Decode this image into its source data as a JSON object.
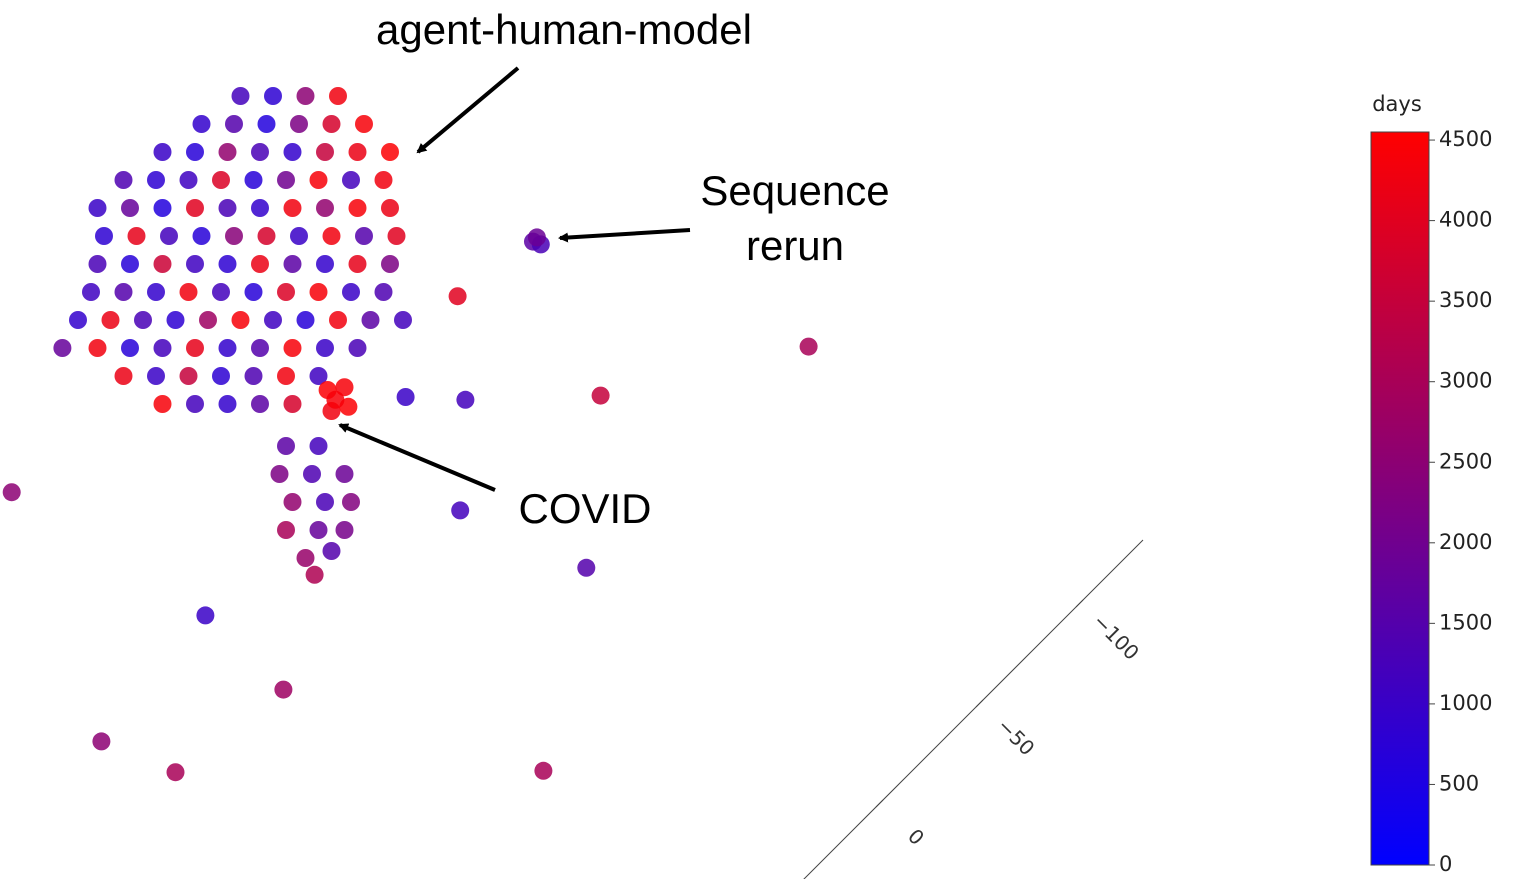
{
  "chart_data": {
    "type": "scatter3d",
    "annotations": [
      {
        "lines": [
          "agent-human-model"
        ]
      },
      {
        "lines": [
          "Sequence",
          "rerun"
        ]
      },
      {
        "lines": [
          "COVID"
        ]
      }
    ],
    "xlim": [
      0,
      100
    ],
    "ylim": [
      0,
      60
    ],
    "x": [
      18.5,
      21,
      23.5,
      26,
      15.5,
      18,
      20.5,
      23,
      25.5,
      28,
      12.5,
      15,
      17.5,
      20,
      22.5,
      25,
      27.5,
      30,
      9.5,
      12,
      14.5,
      17,
      19.5,
      22,
      24.5,
      27,
      29.5,
      7.5,
      10,
      12.5,
      15,
      17.5,
      20,
      22.5,
      25,
      27.5,
      30,
      8,
      10.5,
      13,
      15.5,
      18,
      20.5,
      23,
      25.5,
      28,
      30.5,
      7.5,
      10,
      12.5,
      15,
      17.5,
      20,
      22.5,
      25,
      27.5,
      30,
      7,
      9.5,
      12,
      14.5,
      17,
      19.5,
      22,
      24.5,
      27,
      29.5,
      6,
      8.5,
      11,
      13.5,
      16,
      18.5,
      21,
      23.5,
      26,
      28.5,
      31,
      4.8,
      7.5,
      10,
      12.5,
      15,
      17.5,
      20,
      22.5,
      25,
      27.5,
      9.5,
      12,
      14.5,
      17,
      19.5,
      22,
      24.5,
      12.5,
      15,
      17.5,
      20,
      22.5,
      22,
      24.5,
      21.5,
      24,
      26.5,
      22.5,
      25,
      27,
      22,
      24.5,
      26.5,
      23.5,
      25.5,
      24.2,
      25.2,
      26.5,
      25.5,
      26.8,
      25.8,
      41,
      41.6,
      41.3,
      62.2,
      46.2,
      35.8,
      31.2,
      35.4,
      45.1,
      15.8,
      21.8,
      7.8,
      13.5,
      41.8,
      0.9,
      35.2
    ],
    "y": [
      56,
      56,
      56,
      56,
      54,
      54,
      54,
      54,
      54,
      54,
      52,
      52,
      52,
      52,
      52,
      52,
      52,
      52,
      50,
      50,
      50,
      50,
      50,
      50,
      50,
      50,
      50,
      48,
      48,
      48,
      48,
      48,
      48,
      48,
      48,
      48,
      48,
      46,
      46,
      46,
      46,
      46,
      46,
      46,
      46,
      46,
      46,
      44,
      44,
      44,
      44,
      44,
      44,
      44,
      44,
      44,
      44,
      42,
      42,
      42,
      42,
      42,
      42,
      42,
      42,
      42,
      42,
      40,
      40,
      40,
      40,
      40,
      40,
      40,
      40,
      40,
      40,
      40,
      38,
      38,
      38,
      38,
      38,
      38,
      38,
      38,
      38,
      38,
      36,
      36,
      36,
      36,
      36,
      36,
      36,
      34,
      34,
      34,
      34,
      34,
      31,
      31,
      29,
      29,
      29,
      27,
      27,
      27,
      25,
      25,
      25,
      23,
      23.5,
      21.8,
      35,
      35.2,
      33.5,
      33.8,
      34.3,
      45.6,
      45.4,
      45.9,
      38.1,
      34.6,
      34.3,
      34.5,
      26.4,
      22.3,
      18.9,
      13.6,
      9.9,
      7.7,
      7.8,
      27.7,
      41.7
    ],
    "values": [
      1200,
      800,
      2500,
      4300,
      900,
      1500,
      600,
      2200,
      3800,
      4400,
      1000,
      700,
      2600,
      1300,
      900,
      3500,
      4200,
      4500,
      1400,
      800,
      1100,
      3900,
      700,
      2000,
      4400,
      1200,
      4300,
      1000,
      1800,
      600,
      4000,
      1300,
      900,
      4300,
      2600,
      4400,
      4200,
      800,
      4100,
      1200,
      700,
      2400,
      3800,
      1000,
      4300,
      1500,
      4000,
      1300,
      700,
      3600,
      1100,
      800,
      4200,
      1600,
      900,
      4100,
      2200,
      1100,
      1500,
      900,
      4300,
      1200,
      700,
      3900,
      4400,
      1000,
      1400,
      900,
      4200,
      1300,
      800,
      2800,
      4400,
      1100,
      700,
      4300,
      1600,
      1200,
      1800,
      4300,
      700,
      1200,
      4100,
      900,
      1500,
      4400,
      1000,
      1300,
      4200,
      1000,
      3500,
      800,
      1400,
      4300,
      1100,
      4400,
      1200,
      900,
      1600,
      3800,
      1600,
      1200,
      2200,
      1400,
      1900,
      2600,
      1300,
      2300,
      3000,
      1800,
      2100,
      2700,
      1500,
      3100,
      4500,
      4400,
      4300,
      4500,
      4400,
      1600,
      1300,
      1900,
      3000,
      3500,
      1200,
      1000,
      1200,
      1500,
      1000,
      2800,
      2500,
      3000,
      3000,
      2500,
      4000
    ],
    "zlim": [
      40,
      -130
    ],
    "zticks": [
      {
        "value": 0,
        "label": "0"
      },
      {
        "value": -50,
        "label": "−50"
      },
      {
        "value": -100,
        "label": "−100"
      }
    ],
    "colorbar": {
      "title": "days",
      "lim": [
        0,
        4550
      ],
      "ticks": [
        0,
        500,
        1000,
        1500,
        2000,
        2500,
        3000,
        3500,
        4000,
        4500
      ],
      "colors": [
        "#0000ff",
        "#ff0000"
      ]
    }
  }
}
